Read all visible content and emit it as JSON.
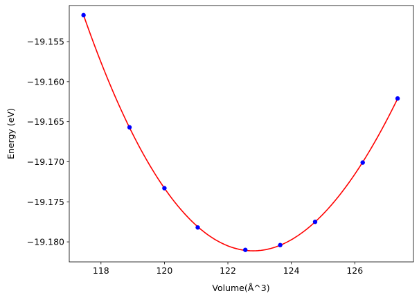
{
  "chart_data": {
    "type": "scatter",
    "title": "",
    "xlabel": "Volume(Å^3)",
    "ylabel": "Energy (eV)",
    "xlim": [
      117.0,
      127.85
    ],
    "ylim": [
      -19.1825,
      -19.1505
    ],
    "x_ticks": [
      118,
      120,
      122,
      124,
      126
    ],
    "x_tick_labels": [
      "118",
      "120",
      "122",
      "124",
      "126"
    ],
    "y_ticks": [
      -19.155,
      -19.16,
      -19.165,
      -19.17,
      -19.175,
      -19.18
    ],
    "y_tick_labels": [
      "−19.155",
      "−19.160",
      "−19.165",
      "−19.170",
      "−19.175",
      "−19.180"
    ],
    "grid": false,
    "legend": "none",
    "colors": {
      "points": "#0000ff",
      "fit_line": "#ff0000",
      "axes": "#000000"
    },
    "series": [
      {
        "type": "scatter",
        "x": [
          117.45,
          118.9,
          120.0,
          121.05,
          122.55,
          123.65,
          124.75,
          126.25,
          127.35
        ],
        "y": [
          -19.1517,
          -19.1657,
          -19.1733,
          -19.1782,
          -19.181,
          -19.1804,
          -19.1775,
          -19.1701,
          -19.1621
        ]
      },
      {
        "type": "line",
        "fit": "polynomial",
        "x_range": [
          117.45,
          127.35
        ]
      }
    ]
  }
}
